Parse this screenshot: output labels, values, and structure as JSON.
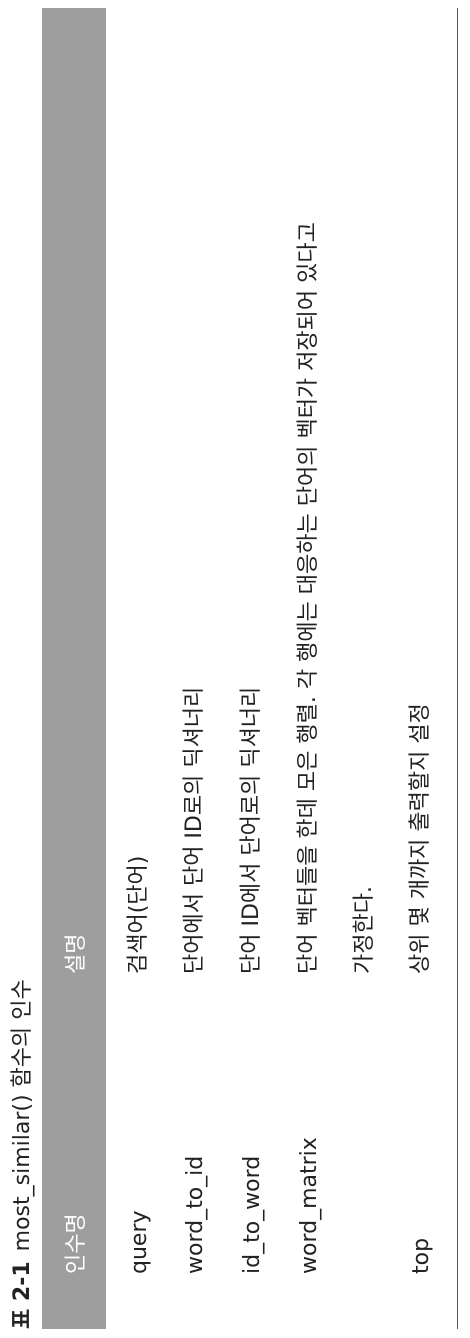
{
  "caption": {
    "label": "표 2-1",
    "title": "most_similar() 함수의 인수"
  },
  "table": {
    "headers": {
      "arg": "인수명",
      "desc": "설명"
    },
    "rows": [
      {
        "arg": "query",
        "desc": "검색어(단어)"
      },
      {
        "arg": "word_to_id",
        "desc": "단어에서 단어 ID로의 딕셔너리"
      },
      {
        "arg": "id_to_word",
        "desc": "단어 ID에서 단어로의 딕셔너리"
      },
      {
        "arg": "word_matrix",
        "desc_line1": "단어 벡터들을 한데 모은 행렬. 각 행에는 대응하는 단어의 벡터가 저장되어 있다고",
        "desc_line2": "가정한다."
      },
      {
        "arg": "top",
        "desc": "상위 몇 개까지 출력할지 설정"
      }
    ]
  }
}
